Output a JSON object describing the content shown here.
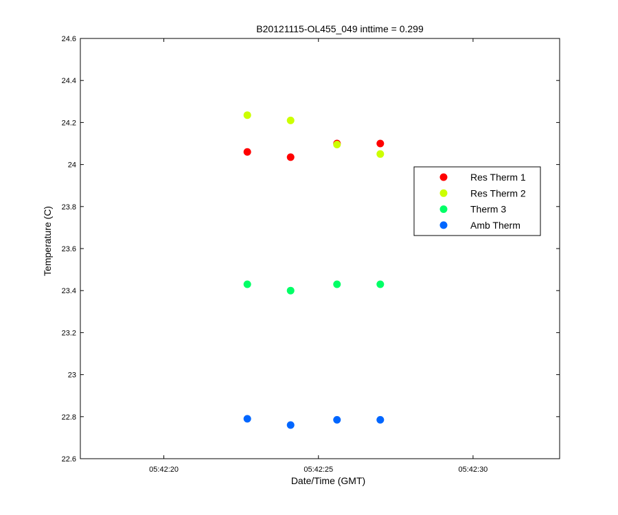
{
  "chart_data": {
    "type": "scatter",
    "title": "B20121115-OL455_049 inttime = 0.299",
    "xlabel": "Date/Time (GMT)",
    "ylabel": "Temperature (C)",
    "x_unit": "time (HH:MM:SS)",
    "xlim": [
      "05:42:17.3",
      "05:42:32.8"
    ],
    "ylim": [
      22.6,
      24.6
    ],
    "x_ticks": [
      "05:42:20",
      "05:42:25",
      "05:42:30"
    ],
    "y_ticks": [
      "22.6",
      "22.8",
      "23",
      "23.2",
      "23.4",
      "23.6",
      "23.8",
      "24",
      "24.2",
      "24.4",
      "24.6"
    ],
    "grid": false,
    "legend_position": "right",
    "series": [
      {
        "name": "Res Therm 1",
        "color": "#ff0000",
        "x": [
          "05:42:22.7",
          "05:42:24.1",
          "05:42:25.6",
          "05:42:27.0"
        ],
        "y": [
          24.06,
          24.035,
          24.1,
          24.1
        ]
      },
      {
        "name": "Res Therm 2",
        "color": "#ccff00",
        "x": [
          "05:42:22.7",
          "05:42:24.1",
          "05:42:25.6",
          "05:42:27.0"
        ],
        "y": [
          24.235,
          24.21,
          24.095,
          24.05
        ]
      },
      {
        "name": "Therm 3",
        "color": "#00ff66",
        "x": [
          "05:42:22.7",
          "05:42:24.1",
          "05:42:25.6",
          "05:42:27.0"
        ],
        "y": [
          23.43,
          23.4,
          23.43,
          23.43
        ]
      },
      {
        "name": "Amb Therm",
        "color": "#0066ff",
        "x": [
          "05:42:22.7",
          "05:42:24.1",
          "05:42:25.6",
          "05:42:27.0"
        ],
        "y": [
          22.79,
          22.76,
          22.785,
          22.785
        ]
      }
    ]
  }
}
